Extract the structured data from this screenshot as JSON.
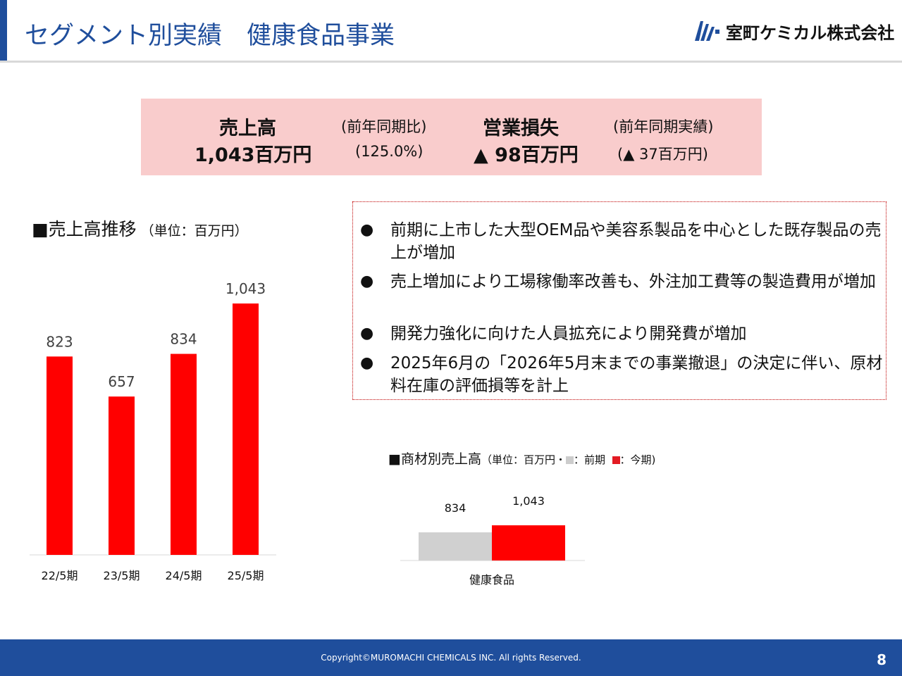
{
  "header": {
    "title": "セグメント別実績　健康食品事業",
    "company": "室町ケミカル株式会社"
  },
  "summary": {
    "sales_label": "売上高",
    "sales_value": "1,043百万円",
    "yoy_label": "(前年同期比)",
    "yoy_value": "(125.0%)",
    "op_label": "営業損失",
    "op_value": "▲ 98百万円",
    "prev_label": "(前年同期実績)",
    "prev_value": "(▲ 37百万円)"
  },
  "sales_section": {
    "title": "■売上高推移",
    "unit": "（単位：百万円）"
  },
  "notes": [
    "前期に上市した大型OEM品や美容系製品を中心とした既存製品の売上が増加",
    "売上増加により工場稼働率改善も、外注加工費等の製造費用が増加",
    "開発力強化に向けた人員拡充により開発費が増加",
    "2025年6月の「2026年5月末までの事業撤退」の決定に伴い、原材料在庫の評価損等を計上"
  ],
  "bullet": "●",
  "product_section": {
    "title": "■商材別売上高",
    "unit_prefix": "（単位：百万円・",
    "prev_legend": "：前期",
    "curr_legend": "：今期)"
  },
  "footer": {
    "copyright": "Copyright©MUROMACHI CHEMICALS INC. All rights Reserved.",
    "page": "8"
  },
  "colors": {
    "brand": "#1f4e9c",
    "bar_current": "#ff0000",
    "bar_previous": "#d0d0d0",
    "summary_bg": "#f9cccc"
  },
  "chart_data": [
    {
      "type": "bar",
      "title": "売上高推移",
      "categories": [
        "22/5期",
        "23/5期",
        "24/5期",
        "25/5期"
      ],
      "values": [
        823,
        657,
        834,
        1043
      ],
      "labels": [
        "823",
        "657",
        "834",
        "1,043"
      ],
      "ylim": [
        0,
        1043
      ],
      "grid": false
    },
    {
      "type": "bar",
      "title": "商材別売上高",
      "categories": [
        "健康食品"
      ],
      "series": [
        {
          "name": "前期",
          "values": [
            834
          ],
          "labels": [
            "834"
          ]
        },
        {
          "name": "今期",
          "values": [
            1043
          ],
          "labels": [
            "1,043"
          ]
        }
      ],
      "grid": false
    }
  ]
}
